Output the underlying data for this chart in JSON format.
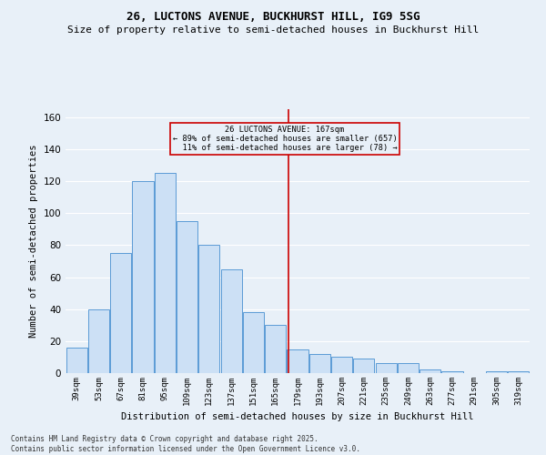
{
  "title_line1": "26, LUCTONS AVENUE, BUCKHURST HILL, IG9 5SG",
  "title_line2": "Size of property relative to semi-detached houses in Buckhurst Hill",
  "xlabel": "Distribution of semi-detached houses by size in Buckhurst Hill",
  "ylabel": "Number of semi-detached properties",
  "footnote": "Contains HM Land Registry data © Crown copyright and database right 2025.\nContains public sector information licensed under the Open Government Licence v3.0.",
  "bar_labels": [
    "39sqm",
    "53sqm",
    "67sqm",
    "81sqm",
    "95sqm",
    "109sqm",
    "123sqm",
    "137sqm",
    "151sqm",
    "165sqm",
    "179sqm",
    "193sqm",
    "207sqm",
    "221sqm",
    "235sqm",
    "249sqm",
    "263sqm",
    "277sqm",
    "291sqm",
    "305sqm",
    "319sqm"
  ],
  "bar_values": [
    16,
    40,
    75,
    120,
    125,
    95,
    80,
    65,
    38,
    30,
    15,
    12,
    10,
    9,
    6,
    6,
    2,
    1,
    0,
    1,
    1
  ],
  "bar_color": "#cce0f5",
  "bar_edge_color": "#5b9bd5",
  "property_label": "26 LUCTONS AVENUE: 167sqm",
  "pct_smaller": 89,
  "n_smaller": 657,
  "pct_larger": 11,
  "n_larger": 78,
  "vline_color": "#cc0000",
  "vline_x": 9.57,
  "ylim": [
    0,
    165
  ],
  "yticks": [
    0,
    20,
    40,
    60,
    80,
    100,
    120,
    140,
    160
  ],
  "background_color": "#e8f0f8",
  "grid_color": "#ffffff",
  "annotation_box_color": "#cc0000",
  "title_fontsize": 9,
  "subtitle_fontsize": 8
}
